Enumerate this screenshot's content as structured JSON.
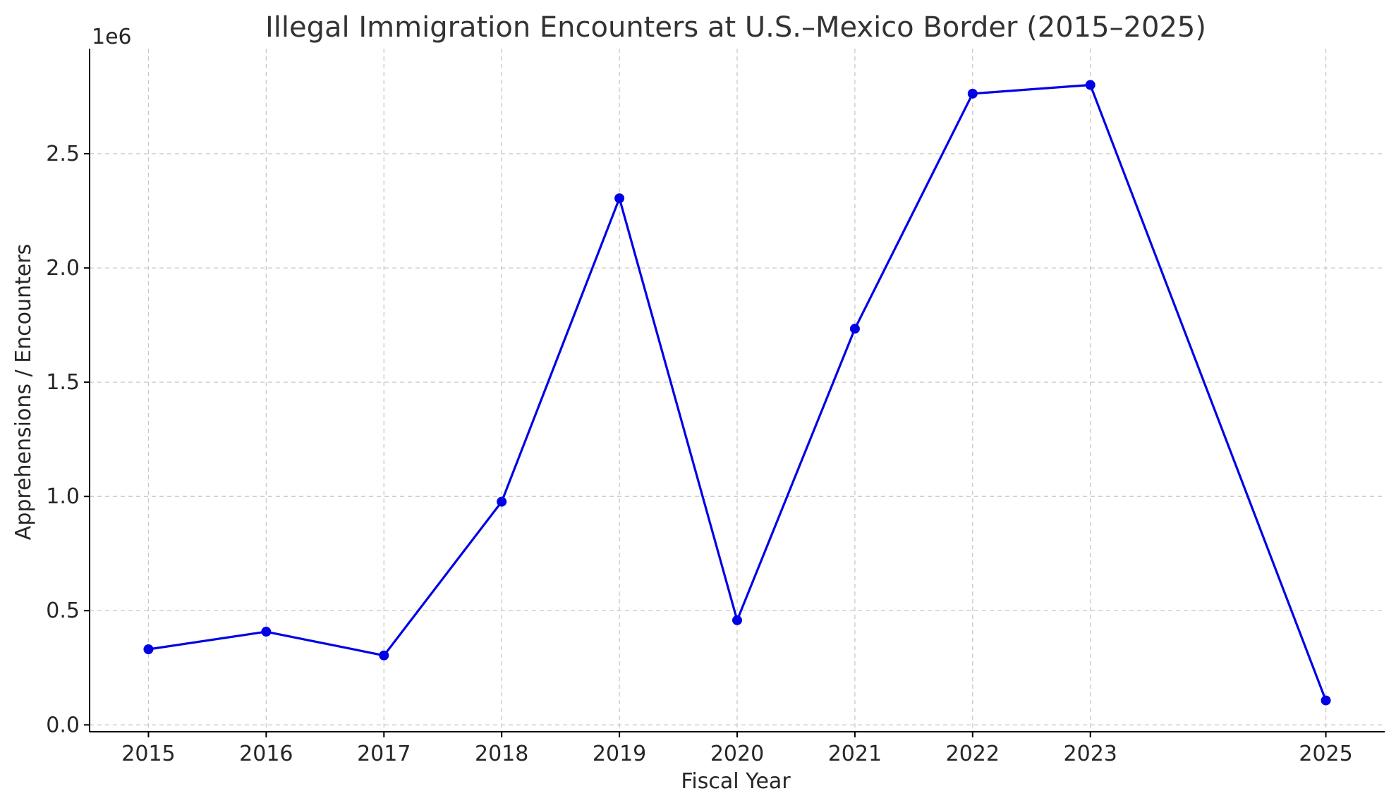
{
  "chart_data": {
    "type": "line",
    "title": "Illegal Immigration Encounters at U.S.–Mexico Border (2015–2025)",
    "xlabel": "Fiscal Year",
    "ylabel": "Apprehensions / Encounters",
    "y_offset_label": "1e6",
    "x": [
      2015,
      2016,
      2017,
      2018,
      2019,
      2020,
      2021,
      2022,
      2023,
      2025
    ],
    "x_tick_labels": [
      "2015",
      "2016",
      "2017",
      "2018",
      "2019",
      "2020",
      "2021",
      "2022",
      "2023",
      "2025"
    ],
    "y_ticks": [
      0.0,
      0.5,
      1.0,
      1.5,
      2.0,
      2.5
    ],
    "y_tick_labels": [
      "0.0",
      "0.5",
      "1.0",
      "1.5",
      "2.0",
      "2.5"
    ],
    "xlim": [
      2014.5,
      2025.5
    ],
    "ylim": [
      -0.03,
      2.96
    ],
    "grid": true,
    "series": [
      {
        "values": [
          331000,
          408000,
          304000,
          977000,
          2305000,
          458000,
          1734000,
          2763000,
          2801000,
          107000
        ],
        "color": "#0000e6",
        "marker": "circle"
      }
    ]
  }
}
